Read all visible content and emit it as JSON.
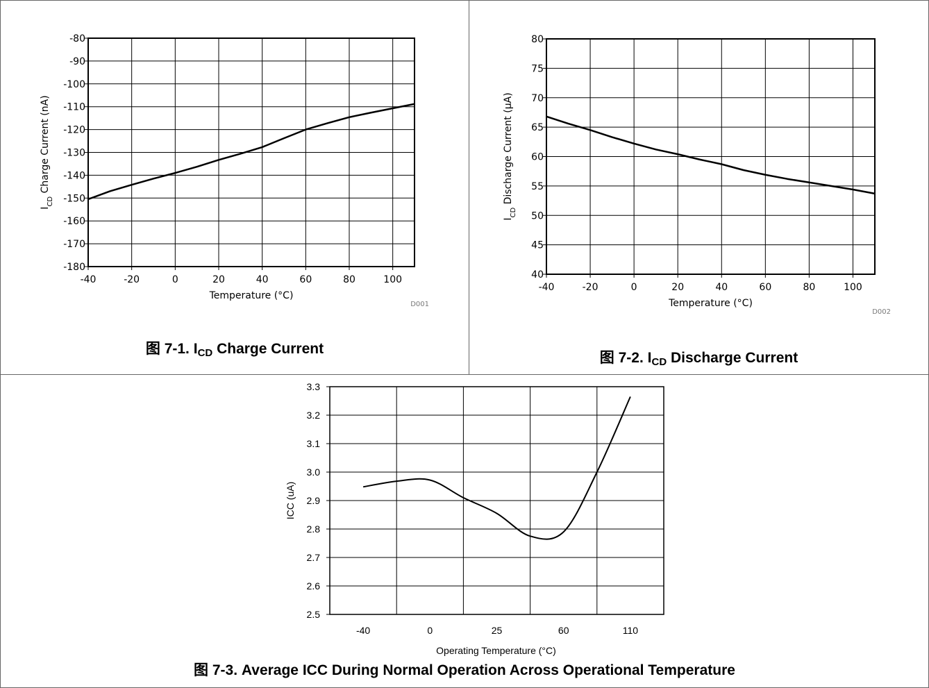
{
  "figures": [
    {
      "caption_prefix": "图 7-1. I",
      "caption_sub": "CD",
      "caption_suffix": " Charge Current",
      "code": "D001"
    },
    {
      "caption_prefix": "图 7-2. I",
      "caption_sub": "CD",
      "caption_suffix": " Discharge Current",
      "code": "D002"
    },
    {
      "caption_prefix": "图 7-3. Average ICC During Normal Operation Across Operational Temperature",
      "caption_sub": "",
      "caption_suffix": "",
      "code": ""
    }
  ],
  "chart_data": [
    {
      "type": "line",
      "title": "",
      "xlabel": "Temperature (°C)",
      "ylabel_main": "I",
      "ylabel_sub": "CD",
      "ylabel_rest": " Charge Current (nA)",
      "xlim": [
        -40,
        110
      ],
      "ylim": [
        -180,
        -80
      ],
      "xticks": [
        -40,
        -20,
        0,
        20,
        40,
        60,
        80,
        100
      ],
      "yticks": [
        -80,
        -90,
        -100,
        -110,
        -120,
        -130,
        -140,
        -150,
        -160,
        -170,
        -180
      ],
      "grid": true,
      "series": [
        {
          "x": [
            -40,
            -30,
            -20,
            -10,
            0,
            10,
            20,
            30,
            40,
            50,
            60,
            70,
            80,
            90,
            100,
            110
          ],
          "y": [
            -150.5,
            -147,
            -144.2,
            -141.5,
            -139,
            -136.3,
            -133.3,
            -130.6,
            -127.7,
            -123.8,
            -120,
            -117.2,
            -114.6,
            -112.6,
            -110.7,
            -108.8
          ]
        }
      ]
    },
    {
      "type": "line",
      "title": "",
      "xlabel": "Temperature (°C)",
      "ylabel_main": "I",
      "ylabel_sub": "CD",
      "ylabel_rest": " Discharge Current (µA)",
      "xlim": [
        -40,
        110
      ],
      "ylim": [
        40,
        80
      ],
      "xticks": [
        -40,
        -20,
        0,
        20,
        40,
        60,
        80,
        100
      ],
      "yticks": [
        80,
        75,
        70,
        65,
        60,
        55,
        50,
        45,
        40
      ],
      "grid": true,
      "series": [
        {
          "x": [
            -40,
            -30,
            -20,
            -10,
            0,
            10,
            20,
            30,
            40,
            50,
            60,
            70,
            80,
            90,
            100,
            110
          ],
          "y": [
            66.8,
            65.6,
            64.5,
            63.3,
            62.2,
            61.2,
            60.4,
            59.5,
            58.7,
            57.7,
            56.9,
            56.2,
            55.6,
            55.0,
            54.4,
            53.7
          ]
        }
      ]
    },
    {
      "type": "line",
      "title": "",
      "xlabel": "Operating Temperature (°C)",
      "ylabel": "ICC (uA)",
      "xcategories": [
        "-40",
        "0",
        "25",
        "60",
        "110"
      ],
      "ylim": [
        2.5,
        3.3
      ],
      "yticks": [
        "3.3",
        "3.2",
        "3.1",
        "3.0",
        "2.9",
        "2.8",
        "2.7",
        "2.6",
        "2.5"
      ],
      "grid": true,
      "series": [
        {
          "x": [
            0,
            0.5,
            1,
            1.5,
            2,
            2.5,
            3,
            3.5,
            4
          ],
          "y": [
            2.948,
            2.968,
            2.972,
            2.91,
            2.855,
            2.775,
            2.79,
            3.0,
            3.265
          ]
        }
      ]
    }
  ]
}
